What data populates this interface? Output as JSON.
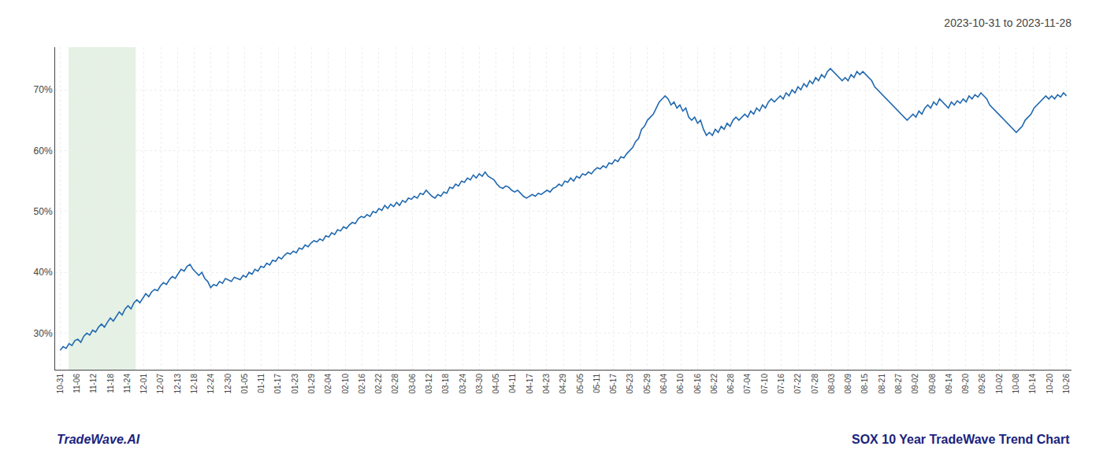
{
  "chart_data": {
    "type": "line",
    "title": "2023-10-31 to 2023-11-28",
    "annotations": [
      "TradeWave.AI",
      "SOX 10 Year TradeWave Trend Chart"
    ],
    "color": "#2169b0",
    "grid": true,
    "xlim": [
      -0.3,
      60.3
    ],
    "xticks": [
      {
        "value": 0,
        "label": "10-31"
      },
      {
        "value": 1,
        "label": "11-06"
      },
      {
        "value": 2,
        "label": "11-12"
      },
      {
        "value": 3,
        "label": "11-18"
      },
      {
        "value": 4,
        "label": "11-24"
      },
      {
        "value": 5,
        "label": "12-01"
      },
      {
        "value": 6,
        "label": "12-07"
      },
      {
        "value": 7,
        "label": "12-13"
      },
      {
        "value": 8,
        "label": "12-18"
      },
      {
        "value": 9,
        "label": "12-24"
      },
      {
        "value": 10,
        "label": "12-30"
      },
      {
        "value": 11,
        "label": "01-05"
      },
      {
        "value": 12,
        "label": "01-11"
      },
      {
        "value": 13,
        "label": "01-17"
      },
      {
        "value": 14,
        "label": "01-23"
      },
      {
        "value": 15,
        "label": "01-29"
      },
      {
        "value": 16,
        "label": "02-04"
      },
      {
        "value": 17,
        "label": "02-10"
      },
      {
        "value": 18,
        "label": "02-16"
      },
      {
        "value": 19,
        "label": "02-22"
      },
      {
        "value": 20,
        "label": "02-28"
      },
      {
        "value": 21,
        "label": "03-06"
      },
      {
        "value": 22,
        "label": "03-12"
      },
      {
        "value": 23,
        "label": "03-18"
      },
      {
        "value": 24,
        "label": "03-24"
      },
      {
        "value": 25,
        "label": "03-30"
      },
      {
        "value": 26,
        "label": "04-05"
      },
      {
        "value": 27,
        "label": "04-11"
      },
      {
        "value": 28,
        "label": "04-17"
      },
      {
        "value": 29,
        "label": "04-23"
      },
      {
        "value": 30,
        "label": "04-29"
      },
      {
        "value": 31,
        "label": "05-05"
      },
      {
        "value": 32,
        "label": "05-11"
      },
      {
        "value": 33,
        "label": "05-17"
      },
      {
        "value": 34,
        "label": "05-23"
      },
      {
        "value": 35,
        "label": "05-29"
      },
      {
        "value": 36,
        "label": "06-04"
      },
      {
        "value": 37,
        "label": "06-10"
      },
      {
        "value": 38,
        "label": "06-16"
      },
      {
        "value": 39,
        "label": "06-22"
      },
      {
        "value": 40,
        "label": "06-28"
      },
      {
        "value": 41,
        "label": "07-04"
      },
      {
        "value": 42,
        "label": "07-10"
      },
      {
        "value": 43,
        "label": "07-16"
      },
      {
        "value": 44,
        "label": "07-22"
      },
      {
        "value": 45,
        "label": "07-28"
      },
      {
        "value": 46,
        "label": "08-03"
      },
      {
        "value": 47,
        "label": "08-09"
      },
      {
        "value": 48,
        "label": "08-15"
      },
      {
        "value": 49,
        "label": "08-21"
      },
      {
        "value": 50,
        "label": "08-27"
      },
      {
        "value": 51,
        "label": "09-02"
      },
      {
        "value": 52,
        "label": "09-08"
      },
      {
        "value": 53,
        "label": "09-14"
      },
      {
        "value": 54,
        "label": "09-20"
      },
      {
        "value": 55,
        "label": "09-26"
      },
      {
        "value": 56,
        "label": "10-02"
      },
      {
        "value": 57,
        "label": "10-08"
      },
      {
        "value": 58,
        "label": "10-14"
      },
      {
        "value": 59,
        "label": "10-20"
      },
      {
        "value": 60,
        "label": "10-26"
      }
    ],
    "ylim": [
      24.0,
      77.0
    ],
    "yticks": [
      {
        "value": 30,
        "label": "30%"
      },
      {
        "value": 40,
        "label": "40%"
      },
      {
        "value": 50,
        "label": "50%"
      },
      {
        "value": 60,
        "label": "60%"
      },
      {
        "value": 70,
        "label": "70%"
      }
    ],
    "shaded_region": {
      "from": "11-06",
      "to": "11-24",
      "color": "#d6ead6"
    },
    "values": [
      27.2,
      27.8,
      27.5,
      28.3,
      28.0,
      28.8,
      29.0,
      28.5,
      29.5,
      30.0,
      29.7,
      30.5,
      30.2,
      31.0,
      31.5,
      31.0,
      31.8,
      32.5,
      32.0,
      32.8,
      33.5,
      33.0,
      34.0,
      34.5,
      34.0,
      35.0,
      35.5,
      35.0,
      35.8,
      36.5,
      36.0,
      36.8,
      37.2,
      37.0,
      37.8,
      38.3,
      38.0,
      38.8,
      39.3,
      39.0,
      39.8,
      40.5,
      40.2,
      41.0,
      41.3,
      40.5,
      40.0,
      39.5,
      40.0,
      39.0,
      38.5,
      37.5,
      38.0,
      37.8,
      38.5,
      38.2,
      39.0,
      38.8,
      38.5,
      39.2,
      39.0,
      38.8,
      39.5,
      39.2,
      40.0,
      39.7,
      40.5,
      40.2,
      41.0,
      40.8,
      41.5,
      41.2,
      42.0,
      41.8,
      42.5,
      42.2,
      42.8,
      43.2,
      43.0,
      43.5,
      43.2,
      44.0,
      43.8,
      44.5,
      44.2,
      44.8,
      45.2,
      45.0,
      45.5,
      45.2,
      46.0,
      45.8,
      46.5,
      46.2,
      47.0,
      46.8,
      47.5,
      47.2,
      47.8,
      48.2,
      48.0,
      48.8,
      49.2,
      49.0,
      49.5,
      49.2,
      50.0,
      49.8,
      50.5,
      50.2,
      51.0,
      50.5,
      51.2,
      50.8,
      51.5,
      51.0,
      51.8,
      51.5,
      52.2,
      52.0,
      52.5,
      52.2,
      53.0,
      52.8,
      53.5,
      53.0,
      52.5,
      52.2,
      52.8,
      52.5,
      53.2,
      53.0,
      54.0,
      53.8,
      54.5,
      54.2,
      55.0,
      54.8,
      55.5,
      55.2,
      56.0,
      55.5,
      56.2,
      55.8,
      56.5,
      55.8,
      55.5,
      55.2,
      54.5,
      54.0,
      53.8,
      54.2,
      54.0,
      53.5,
      53.2,
      53.5,
      53.0,
      52.5,
      52.2,
      52.5,
      52.8,
      52.5,
      53.0,
      52.8,
      53.2,
      53.5,
      53.2,
      53.8,
      54.0,
      54.5,
      54.2,
      55.0,
      54.8,
      55.5,
      55.0,
      55.8,
      55.5,
      56.2,
      56.0,
      56.5,
      56.2,
      56.8,
      57.2,
      57.0,
      57.5,
      57.2,
      58.0,
      57.8,
      58.5,
      58.2,
      59.0,
      58.8,
      59.5,
      60.0,
      60.5,
      61.5,
      62.0,
      63.5,
      64.0,
      65.0,
      65.5,
      66.0,
      67.0,
      68.0,
      68.5,
      69.0,
      68.5,
      67.5,
      68.0,
      67.0,
      67.5,
      66.5,
      67.0,
      65.5,
      65.0,
      65.5,
      64.5,
      65.0,
      63.5,
      62.5,
      63.0,
      62.5,
      63.5,
      63.0,
      64.0,
      63.5,
      64.5,
      64.0,
      65.0,
      65.5,
      65.0,
      65.5,
      66.0,
      65.5,
      66.5,
      66.0,
      67.0,
      66.5,
      67.5,
      67.0,
      68.0,
      68.5,
      68.0,
      68.5,
      69.0,
      68.5,
      69.5,
      69.0,
      70.0,
      69.5,
      70.5,
      70.0,
      71.0,
      70.5,
      71.5,
      71.0,
      72.0,
      71.5,
      72.5,
      72.0,
      73.0,
      73.5,
      73.0,
      72.5,
      72.0,
      71.5,
      72.0,
      71.5,
      72.5,
      72.0,
      73.0,
      72.5,
      73.0,
      72.5,
      72.0,
      71.5,
      70.5,
      70.0,
      69.5,
      69.0,
      68.5,
      68.0,
      67.5,
      67.0,
      66.5,
      66.0,
      65.5,
      65.0,
      65.5,
      66.0,
      65.5,
      66.5,
      66.0,
      67.0,
      67.5,
      67.0,
      68.0,
      67.5,
      68.5,
      68.0,
      67.5,
      67.0,
      68.0,
      67.5,
      68.2,
      67.8,
      68.5,
      68.0,
      69.0,
      68.5,
      69.2,
      68.8,
      69.5,
      69.0,
      68.5,
      67.5,
      67.0,
      66.5,
      66.0,
      65.5,
      65.0,
      64.5,
      64.0,
      63.5,
      63.0,
      63.5,
      64.0,
      65.0,
      65.5,
      66.0,
      67.0,
      67.5,
      68.0,
      68.5,
      69.0,
      68.5,
      69.0,
      68.5,
      69.2,
      68.8,
      69.5,
      69.0
    ]
  }
}
